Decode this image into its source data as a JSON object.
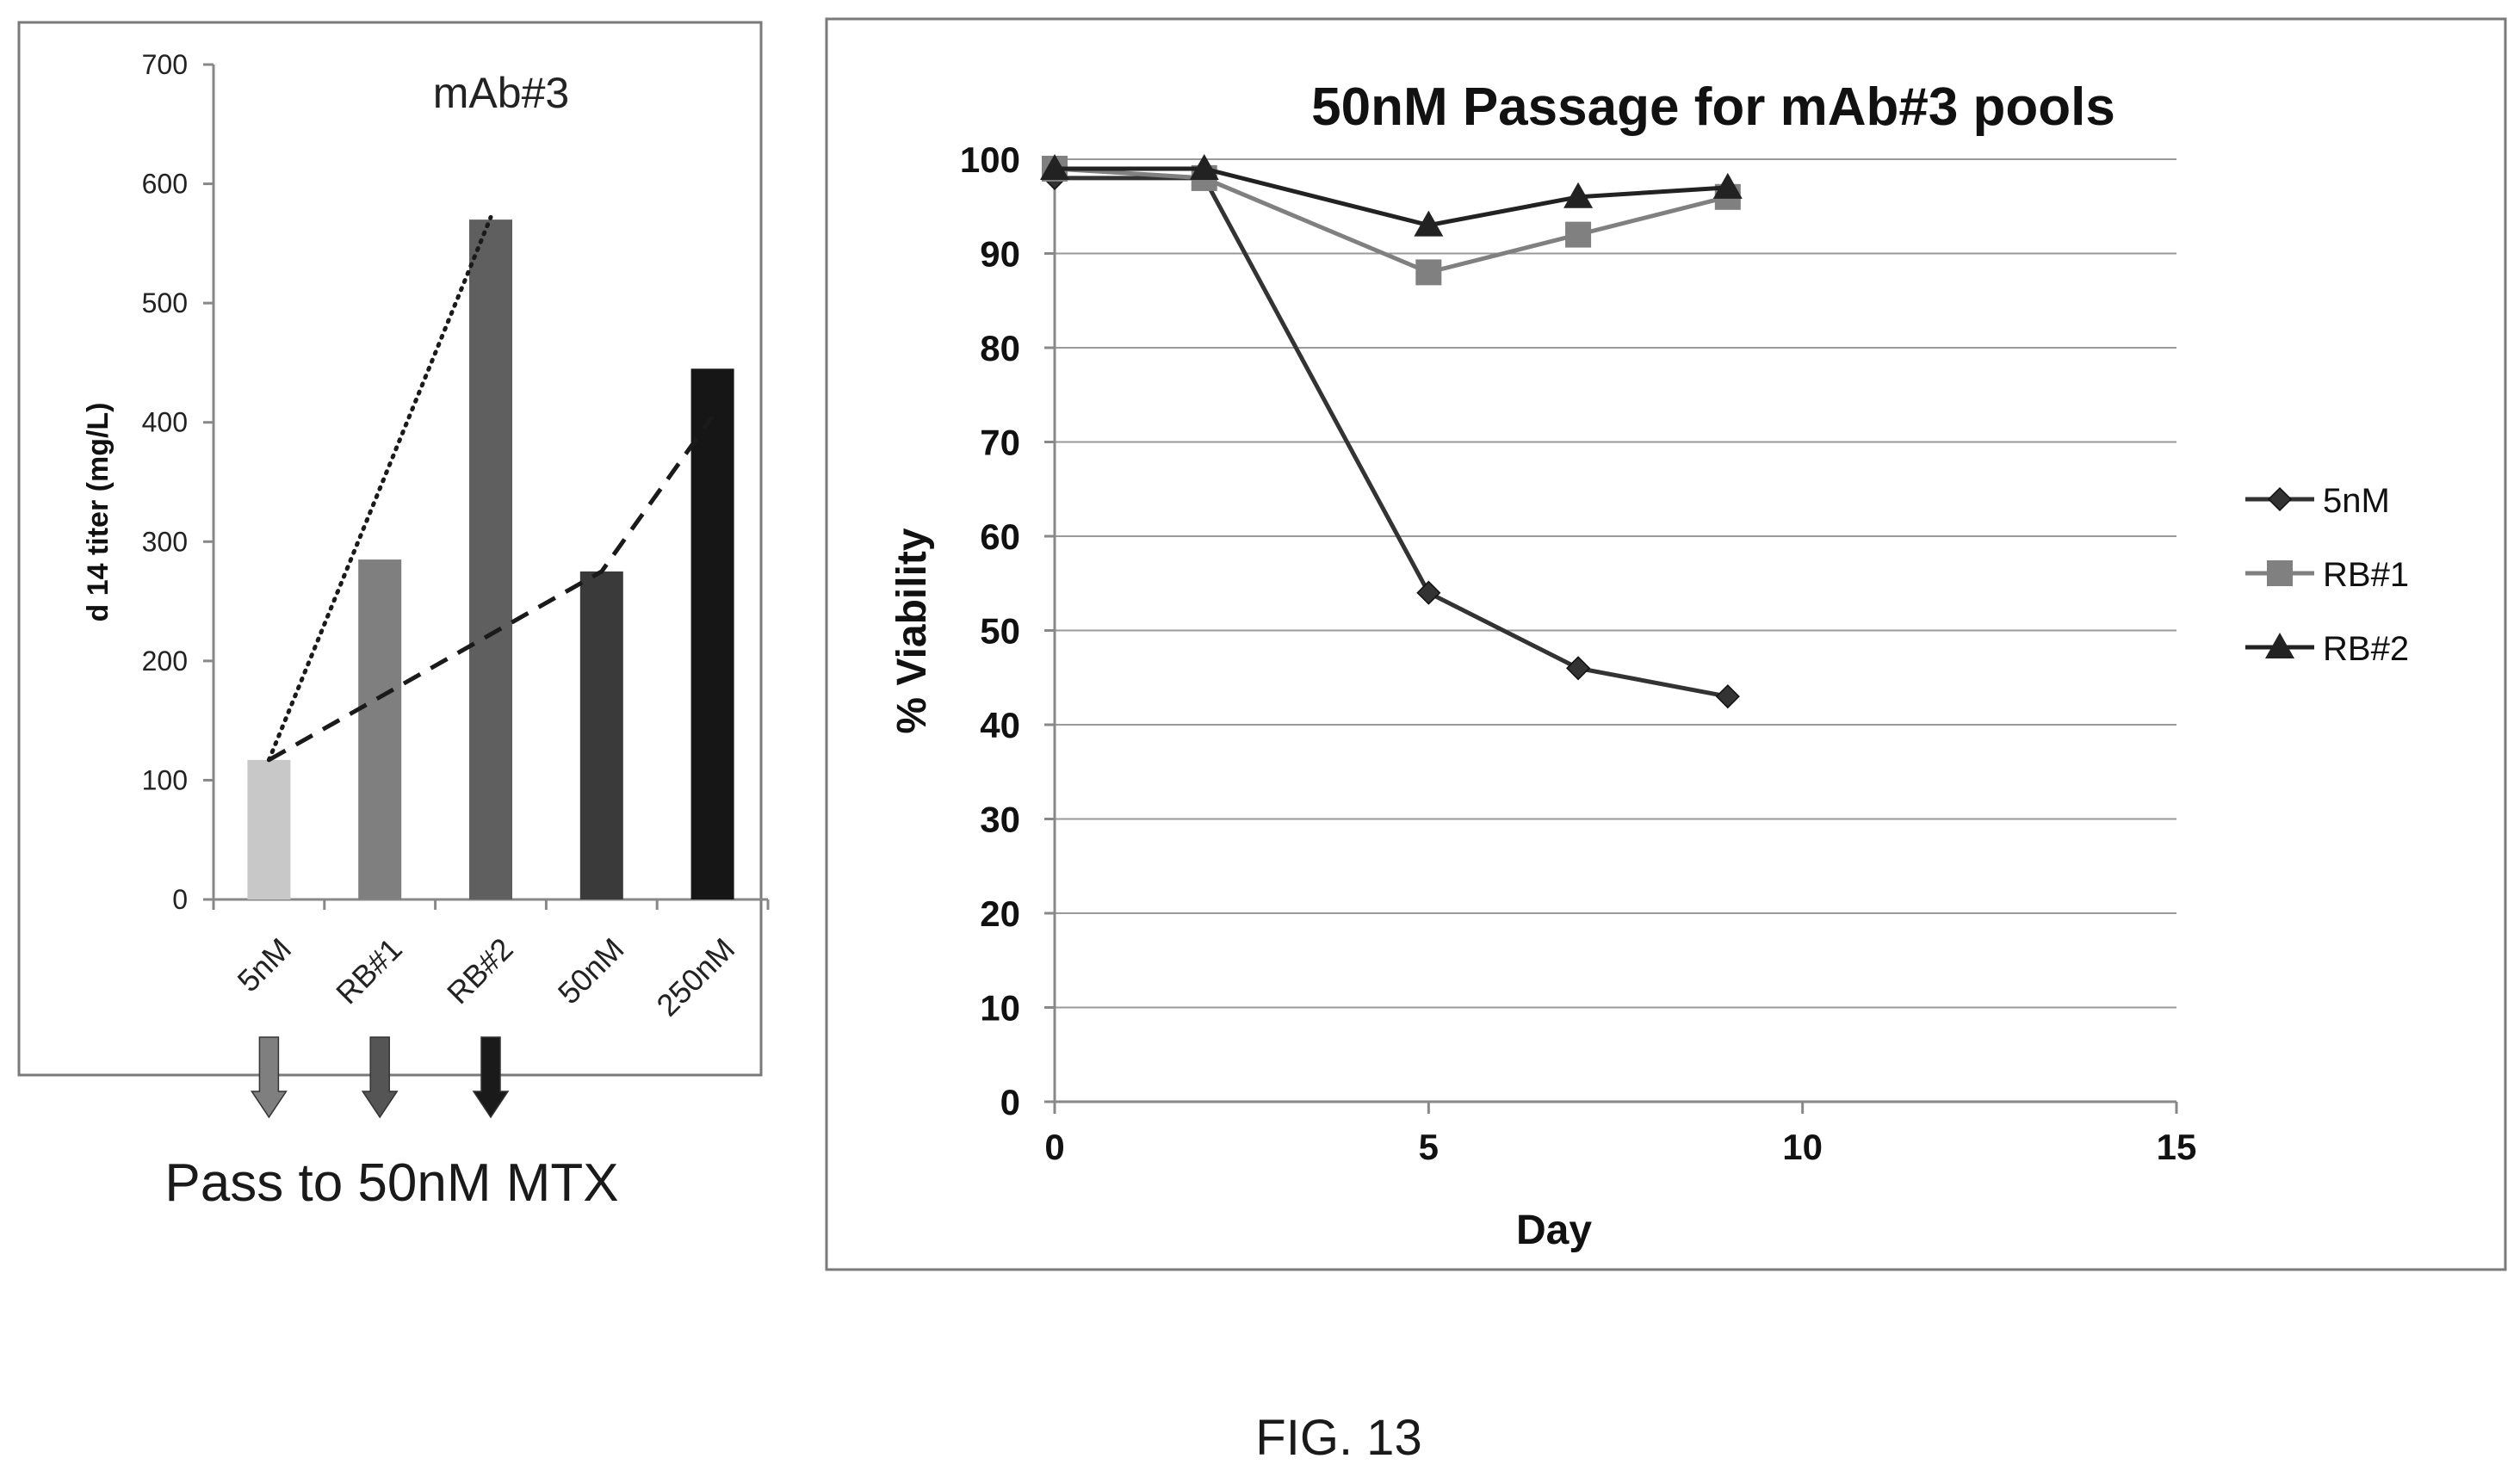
{
  "chart_data": [
    {
      "type": "bar",
      "title": "mAb#3",
      "xlabel": "",
      "ylabel": "d 14 titer (mg/L)",
      "categories": [
        "5nM",
        "RB#1",
        "RB#2",
        "50nM",
        "250nM"
      ],
      "values": [
        117,
        285,
        570,
        275,
        445
      ],
      "bar_colors": [
        "#c8c8c8",
        "#7f7f7f",
        "#5f5f5f",
        "#3a3a3a",
        "#161616"
      ],
      "ylim": [
        0,
        700
      ],
      "yticks": [
        0,
        100,
        200,
        300,
        400,
        500,
        600,
        700
      ],
      "grid": false,
      "trend_lines": [
        {
          "style": "dotted",
          "from_category": "5nM",
          "to_category": "RB#2",
          "from_value": 117,
          "to_value": 572
        },
        {
          "style": "dashed",
          "points": [
            {
              "category": "5nM",
              "value": 117
            },
            {
              "category": "50nM",
              "value": 275
            },
            {
              "category": "250nM",
              "value": 405
            }
          ]
        }
      ],
      "arrows": {
        "categories": [
          "5nM",
          "RB#1",
          "RB#2"
        ],
        "colors": [
          "#7f7f7f",
          "#555555",
          "#1a1a1a"
        ],
        "caption": "Pass to 50nM MTX"
      }
    },
    {
      "type": "line",
      "title": "50nM Passage for mAb#3 pools",
      "xlabel": "Day",
      "ylabel": "% Viability",
      "xlim": [
        0,
        15
      ],
      "ylim": [
        0,
        100
      ],
      "xticks": [
        0,
        5,
        10,
        15
      ],
      "yticks": [
        0,
        10,
        20,
        30,
        40,
        50,
        60,
        70,
        80,
        90,
        100
      ],
      "grid": true,
      "legend_position": "right",
      "series": [
        {
          "name": "5nM",
          "marker": "diamond",
          "color": "#333333",
          "x": [
            0,
            2,
            5,
            7,
            9
          ],
          "y": [
            98,
            98,
            54,
            46,
            43
          ]
        },
        {
          "name": "RB#1",
          "marker": "square",
          "color": "#808080",
          "x": [
            0,
            2,
            5,
            7,
            9
          ],
          "y": [
            99,
            98,
            88,
            92,
            96
          ]
        },
        {
          "name": "RB#2",
          "marker": "triangle",
          "color": "#222222",
          "x": [
            0,
            2,
            5,
            7,
            9
          ],
          "y": [
            99,
            99,
            93,
            96,
            97
          ]
        }
      ]
    }
  ],
  "figure_label": "FIG. 13"
}
